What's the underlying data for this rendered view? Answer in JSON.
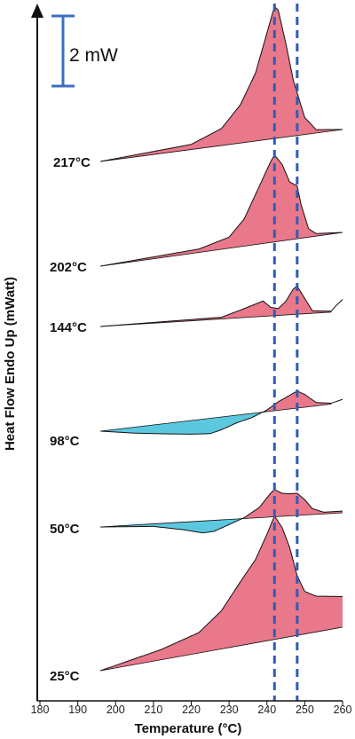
{
  "chart_data": {
    "type": "area",
    "xlabel": "Temperature (°C)",
    "ylabel": "Heat Flow Endo Up (mWatt)",
    "xlim": [
      180,
      260
    ],
    "x_ticks": [
      "180",
      "190",
      "200",
      "210",
      "220",
      "230",
      "240",
      "250",
      "260"
    ],
    "scale_bar_label": "2 mW",
    "vlines": [
      242,
      248
    ],
    "vline_color": "#2e5cb8",
    "endo_fill": "#e8788a",
    "exo_fill": "#5bc8e0",
    "series": [
      {
        "name": "217°C",
        "baseline": [
          [
            196,
            0
          ],
          [
            260,
            0
          ]
        ],
        "curve": [
          [
            196,
            0
          ],
          [
            220,
            0.6
          ],
          [
            228,
            2.0
          ],
          [
            233,
            4.5
          ],
          [
            237,
            8.0
          ],
          [
            240,
            12.5
          ],
          [
            242,
            15.5
          ],
          [
            243,
            15.0
          ],
          [
            245,
            11.0
          ],
          [
            247,
            6.5
          ],
          [
            250,
            2.0
          ],
          [
            253,
            0.4
          ],
          [
            260,
            0
          ]
        ]
      },
      {
        "name": "202°C",
        "baseline": [
          [
            196,
            0
          ],
          [
            260,
            0
          ]
        ],
        "curve": [
          [
            196,
            0
          ],
          [
            222,
            0.4
          ],
          [
            230,
            1.3
          ],
          [
            234,
            3.2
          ],
          [
            238,
            6.8
          ],
          [
            241,
            9.5
          ],
          [
            242,
            10.2
          ],
          [
            244,
            9.0
          ],
          [
            246,
            6.8
          ],
          [
            248,
            6.2
          ],
          [
            249,
            4.0
          ],
          [
            251,
            1.0
          ],
          [
            253,
            0.3
          ],
          [
            260,
            0
          ]
        ]
      },
      {
        "name": "144°C",
        "baseline": [
          [
            196,
            0
          ],
          [
            257,
            0
          ]
        ],
        "curve": [
          [
            196,
            0
          ],
          [
            228,
            0.2
          ],
          [
            233,
            0.9
          ],
          [
            237,
            1.5
          ],
          [
            239,
            1.8
          ],
          [
            241,
            1.0
          ],
          [
            243,
            0.8
          ],
          [
            245,
            1.6
          ],
          [
            247,
            3.0
          ],
          [
            248,
            3.3
          ],
          [
            250,
            1.8
          ],
          [
            252,
            0.3
          ],
          [
            257,
            0.1
          ],
          [
            258,
            0.6
          ],
          [
            260,
            1.4
          ]
        ]
      },
      {
        "name": "98°C",
        "baseline": [
          [
            196,
            0
          ],
          [
            257,
            0
          ]
        ],
        "curve": [
          [
            196,
            0
          ],
          [
            205,
            -0.7
          ],
          [
            213,
            -1.2
          ],
          [
            220,
            -1.6
          ],
          [
            225,
            -1.8
          ],
          [
            228,
            -1.5
          ],
          [
            232,
            -0.9
          ],
          [
            236,
            -0.5
          ],
          [
            240,
            0.2
          ],
          [
            243,
            1.0
          ],
          [
            246,
            1.6
          ],
          [
            248,
            2.0
          ],
          [
            250,
            1.5
          ],
          [
            253,
            0.4
          ],
          [
            257,
            0.1
          ],
          [
            260,
            0.4
          ]
        ]
      },
      {
        "name": "50°C",
        "baseline": [
          [
            196,
            0
          ],
          [
            260,
            0
          ]
        ],
        "curve": [
          [
            196,
            0
          ],
          [
            210,
            -0.3
          ],
          [
            218,
            -0.9
          ],
          [
            223,
            -1.4
          ],
          [
            226,
            -1.3
          ],
          [
            230,
            -0.6
          ],
          [
            234,
            0.1
          ],
          [
            238,
            1.2
          ],
          [
            241,
            2.8
          ],
          [
            242,
            3.2
          ],
          [
            244,
            2.7
          ],
          [
            246,
            2.6
          ],
          [
            248,
            2.6
          ],
          [
            250,
            1.8
          ],
          [
            252,
            0.7
          ],
          [
            255,
            0.2
          ],
          [
            260,
            0.2
          ]
        ]
      },
      {
        "name": "25°C",
        "baseline": [
          [
            196,
            0
          ],
          [
            260,
            0
          ]
        ],
        "curve": [
          [
            196,
            0
          ],
          [
            212,
            1.2
          ],
          [
            222,
            2.4
          ],
          [
            228,
            4.5
          ],
          [
            233,
            7.5
          ],
          [
            237,
            9.8
          ],
          [
            240,
            12.5
          ],
          [
            242,
            14.5
          ],
          [
            244,
            13.0
          ],
          [
            246,
            10.5
          ],
          [
            248,
            7.0
          ],
          [
            250,
            5.0
          ],
          [
            253,
            4.2
          ],
          [
            260,
            3.6
          ]
        ]
      }
    ]
  }
}
